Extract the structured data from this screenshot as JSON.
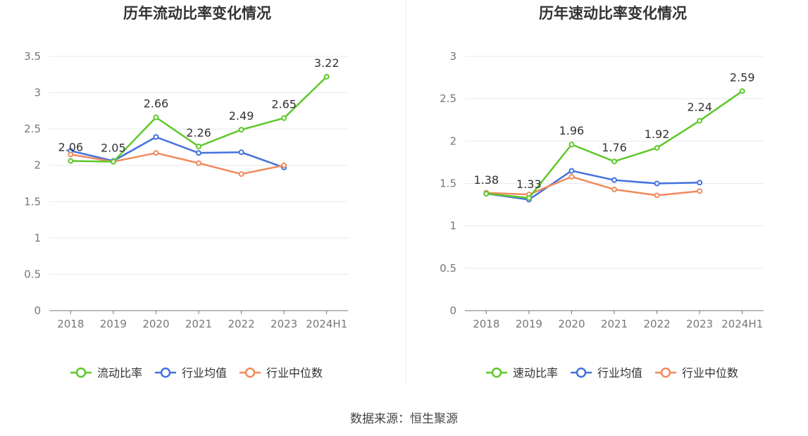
{
  "source_label": "数据来源：恒生聚源",
  "chart_data": [
    {
      "type": "line",
      "title": "历年流动比率变化情况",
      "categories": [
        "2018",
        "2019",
        "2020",
        "2021",
        "2022",
        "2023",
        "2024H1"
      ],
      "ylim": [
        0,
        3.5
      ],
      "yticks": [
        "0",
        "0.5",
        "1",
        "1.5",
        "2",
        "2.5",
        "3",
        "3.5"
      ],
      "grid": true,
      "legend_position": "bottom",
      "series": [
        {
          "name": "流动比率",
          "color": "#5ec82a",
          "labeled": true,
          "values": [
            2.06,
            2.05,
            2.66,
            2.26,
            2.49,
            2.65,
            3.22
          ],
          "labels": [
            "2.06",
            "2.05",
            "2.66",
            "2.26",
            "2.49",
            "2.65",
            "3.22"
          ]
        },
        {
          "name": "行业均值",
          "color": "#4472dc",
          "labeled": false,
          "values": [
            2.2,
            2.06,
            2.39,
            2.17,
            2.18,
            1.97,
            null
          ]
        },
        {
          "name": "行业中位数",
          "color": "#f08a5d",
          "labeled": false,
          "values": [
            2.15,
            2.05,
            2.17,
            2.03,
            1.88,
            2.0,
            null
          ]
        }
      ]
    },
    {
      "type": "line",
      "title": "历年速动比率变化情况",
      "categories": [
        "2018",
        "2019",
        "2020",
        "2021",
        "2022",
        "2023",
        "2024H1"
      ],
      "ylim": [
        0,
        3
      ],
      "yticks": [
        "0",
        "0.5",
        "1",
        "1.5",
        "2",
        "2.5",
        "3"
      ],
      "grid": true,
      "legend_position": "bottom",
      "series": [
        {
          "name": "速动比率",
          "color": "#5ec82a",
          "labeled": true,
          "values": [
            1.38,
            1.33,
            1.96,
            1.76,
            1.92,
            2.24,
            2.59
          ],
          "labels": [
            "1.38",
            "1.33",
            "1.96",
            "1.76",
            "1.92",
            "2.24",
            "2.59"
          ]
        },
        {
          "name": "行业均值",
          "color": "#4472dc",
          "labeled": false,
          "values": [
            1.38,
            1.31,
            1.65,
            1.54,
            1.5,
            1.51,
            null
          ]
        },
        {
          "name": "行业中位数",
          "color": "#f08a5d",
          "labeled": false,
          "values": [
            1.39,
            1.37,
            1.58,
            1.43,
            1.36,
            1.41,
            null
          ]
        }
      ]
    }
  ]
}
